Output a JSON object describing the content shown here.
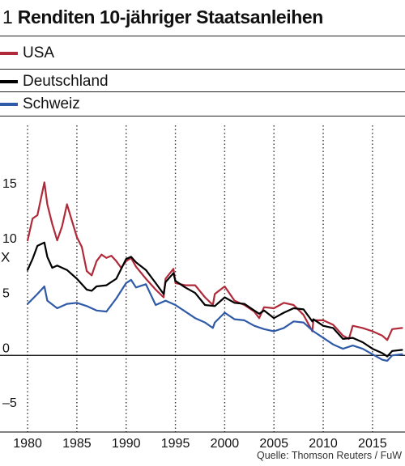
{
  "figure_number": "1",
  "title": "Renditen 10-jähriger Staatsanleihen",
  "source": "Quelle: Thomson Reuters / FuW",
  "axis_marker": "X",
  "colors": {
    "USA": "#b02a3a",
    "Deutschland": "#000000",
    "Schweiz": "#2f5aa8"
  },
  "chart_data": {
    "type": "line",
    "title": "Renditen 10-jähriger Staatsanleihen",
    "xlabel": "",
    "ylabel": "",
    "xlim": [
      1979.5,
      2018.3
    ],
    "ylim": [
      -7,
      21
    ],
    "x_ticks": [
      1980,
      1985,
      1990,
      1995,
      2000,
      2005,
      2010,
      2015
    ],
    "x_tick_labels": [
      "1980",
      "1985",
      "1990",
      "1995",
      "2000",
      "2005",
      "2010",
      "2015"
    ],
    "y_ticks": [
      -5,
      0,
      5,
      10,
      15
    ],
    "y_tick_labels": [
      "–5",
      "0",
      "5",
      "10",
      "15"
    ],
    "grid": "vertical dotted",
    "legend": "top-left",
    "series": [
      {
        "name": "USA",
        "x": [
          1980,
          1980.5,
          1981,
          1981.7,
          1982,
          1982.5,
          1983,
          1983.5,
          1984,
          1984.5,
          1985,
          1985.5,
          1986,
          1986.5,
          1987,
          1987.5,
          1988,
          1988.5,
          1989,
          1989.5,
          1990,
          1990.5,
          1991,
          1992,
          1993,
          1993.8,
          1994,
          1994.8,
          1995,
          1996,
          1997,
          1998,
          1998.8,
          1999,
          2000,
          2001,
          2002,
          2003,
          2003.5,
          2004,
          2005,
          2006,
          2007,
          2008,
          2008.9,
          2009,
          2010,
          2011,
          2012,
          2012.6,
          2013,
          2014,
          2015,
          2016,
          2016.5,
          2017,
          2018
        ],
        "y": [
          10.5,
          12.5,
          12.8,
          15.8,
          13.8,
          12.0,
          10.5,
          11.8,
          13.8,
          12.3,
          10.8,
          9.9,
          7.7,
          7.3,
          8.6,
          9.2,
          8.9,
          9.1,
          8.6,
          8.0,
          8.6,
          8.9,
          8.1,
          7.0,
          6.0,
          5.3,
          7.0,
          7.9,
          6.6,
          6.4,
          6.4,
          5.3,
          4.6,
          5.6,
          6.3,
          5.0,
          4.6,
          4.0,
          3.4,
          4.4,
          4.3,
          4.8,
          4.6,
          3.7,
          2.2,
          3.2,
          3.2,
          2.8,
          1.8,
          1.5,
          2.7,
          2.5,
          2.2,
          1.8,
          1.4,
          2.4,
          2.5
        ]
      },
      {
        "name": "Deutschland",
        "x": [
          1980,
          1980.5,
          1981,
          1981.7,
          1982,
          1982.5,
          1983,
          1984,
          1985,
          1986,
          1986.5,
          1987,
          1988,
          1989,
          1990,
          1990.5,
          1991,
          1992,
          1993,
          1993.8,
          1994,
          1994.8,
          1995,
          1996,
          1997,
          1998,
          1999,
          2000,
          2001,
          2002,
          2003,
          2003.5,
          2004,
          2005,
          2006,
          2007,
          2008,
          2008.9,
          2009,
          2010,
          2011,
          2012,
          2013,
          2014,
          2015,
          2016,
          2016.5,
          2017,
          2018
        ],
        "y": [
          7.8,
          8.8,
          10.0,
          10.3,
          9.0,
          8.0,
          8.2,
          7.8,
          7.0,
          6.0,
          5.9,
          6.3,
          6.4,
          7.0,
          8.8,
          9.0,
          8.5,
          7.8,
          6.6,
          5.6,
          6.7,
          7.5,
          6.8,
          6.2,
          5.7,
          4.6,
          4.5,
          5.3,
          4.8,
          4.7,
          4.1,
          3.8,
          4.1,
          3.4,
          3.9,
          4.3,
          4.2,
          3.1,
          3.3,
          2.7,
          2.5,
          1.5,
          1.6,
          1.2,
          0.6,
          0.2,
          -0.1,
          0.4,
          0.5
        ]
      },
      {
        "name": "Schweiz",
        "x": [
          1980,
          1981,
          1981.7,
          1982,
          1983,
          1984,
          1985,
          1986,
          1987,
          1988,
          1989,
          1990,
          1990.5,
          1991,
          1992,
          1993,
          1994,
          1995,
          1996,
          1997,
          1998,
          1998.8,
          1999,
          2000,
          2001,
          2002,
          2003,
          2004,
          2005,
          2006,
          2007,
          2008,
          2009,
          2010,
          2011,
          2012,
          2013,
          2014,
          2015,
          2016,
          2016.5,
          2017,
          2018
        ],
        "y": [
          4.7,
          5.6,
          6.3,
          5.0,
          4.3,
          4.7,
          4.8,
          4.5,
          4.1,
          4.0,
          5.2,
          6.6,
          6.9,
          6.2,
          6.5,
          4.6,
          5.0,
          4.6,
          4.0,
          3.4,
          3.0,
          2.5,
          3.0,
          3.9,
          3.3,
          3.2,
          2.7,
          2.4,
          2.2,
          2.5,
          3.1,
          3.0,
          2.2,
          1.6,
          1.0,
          0.6,
          0.9,
          0.6,
          0.1,
          -0.4,
          -0.5,
          0.0,
          0.1
        ]
      }
    ]
  }
}
